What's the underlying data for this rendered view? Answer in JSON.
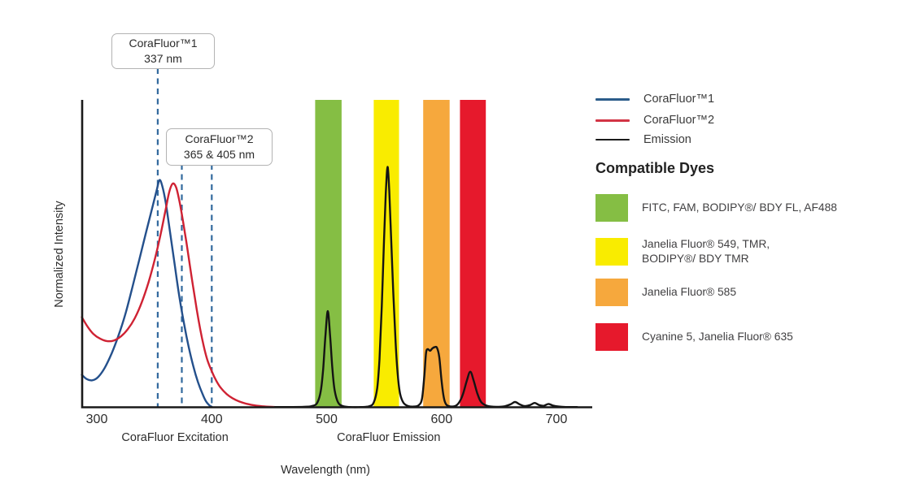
{
  "annotations": [
    {
      "title": "CoraFluor™1",
      "value": "337 nm"
    },
    {
      "title": "CoraFluor™2",
      "value": "365 & 405 nm"
    }
  ],
  "legend": {
    "items": [
      {
        "label": "CoraFluor™1",
        "color": "#2B5C8A"
      },
      {
        "label": "CoraFluor™2",
        "color": "#D23445"
      },
      {
        "label": "Emission",
        "color": "#1A1A1A"
      }
    ]
  },
  "compatible_dyes": {
    "heading": "Compatible Dyes",
    "items": [
      {
        "color": "#85BE44",
        "lines": [
          "FITC, FAM, BODIPY®/ BDY FL, AF488"
        ]
      },
      {
        "color": "#F9EC00",
        "lines": [
          "Janelia Fluor® 549, TMR,",
          "BODIPY®/ BDY TMR"
        ]
      },
      {
        "color": "#F6A83D",
        "lines": [
          "Janelia Fluor® 585"
        ]
      },
      {
        "color": "#E6192C",
        "lines": [
          "Cyanine 5, Janelia Fluor® 635"
        ]
      }
    ]
  },
  "chart_data": {
    "type": "line",
    "title": "",
    "xlabel": "Wavelength (nm)",
    "ylabel": "Normalized Intensity",
    "x_ticks": [
      300,
      400,
      500,
      600,
      700
    ],
    "x_range_nm": [
      287,
      727
    ],
    "ylim": [
      0,
      1
    ],
    "grid": false,
    "section_labels": [
      {
        "label": "CoraFluor Excitation",
        "center_nm": 368
      },
      {
        "label": "CoraFluor Emission",
        "center_nm": 554
      }
    ],
    "dashed_lines": [
      {
        "label_nm": 337,
        "draw_nm": 353
      },
      {
        "label_nm": 365,
        "draw_nm": 374
      },
      {
        "label_nm": 405,
        "draw_nm": 400
      }
    ],
    "filter_bands": [
      {
        "name": "green-filter",
        "nm": [
          490,
          513
        ],
        "color": "#85BE44"
      },
      {
        "name": "yellow-filter",
        "nm": [
          541,
          563
        ],
        "color": "#F9EC00"
      },
      {
        "name": "orange-filter",
        "nm": [
          584,
          607
        ],
        "color": "#F6A83D"
      },
      {
        "name": "red-filter",
        "nm": [
          616,
          638.5
        ],
        "color": "#E6192C"
      }
    ],
    "series": [
      {
        "name": "CoraFluor™1 excitation",
        "color": "#24508C",
        "points": [
          [
            287,
            0.135
          ],
          [
            291,
            0.118
          ],
          [
            296,
            0.112
          ],
          [
            301,
            0.125
          ],
          [
            307,
            0.165
          ],
          [
            313,
            0.225
          ],
          [
            319,
            0.3
          ],
          [
            325,
            0.39
          ],
          [
            331,
            0.5
          ],
          [
            337,
            0.615
          ],
          [
            343,
            0.73
          ],
          [
            348,
            0.825
          ],
          [
            352,
            0.9
          ],
          [
            354.5,
            0.945
          ],
          [
            357,
            0.92
          ],
          [
            360,
            0.85
          ],
          [
            364,
            0.72
          ],
          [
            368,
            0.585
          ],
          [
            372,
            0.455
          ],
          [
            376,
            0.345
          ],
          [
            380,
            0.25
          ],
          [
            384,
            0.17
          ],
          [
            388,
            0.105
          ],
          [
            392,
            0.055
          ],
          [
            395,
            0.025
          ],
          [
            398,
            0.008
          ],
          [
            400,
            0.002
          ]
        ]
      },
      {
        "name": "CoraFluor™2 excitation",
        "color": "#CF2233",
        "points": [
          [
            287,
            0.375
          ],
          [
            292,
            0.335
          ],
          [
            297,
            0.305
          ],
          [
            303,
            0.285
          ],
          [
            309,
            0.275
          ],
          [
            315,
            0.278
          ],
          [
            321,
            0.295
          ],
          [
            327,
            0.325
          ],
          [
            333,
            0.37
          ],
          [
            339,
            0.435
          ],
          [
            345,
            0.52
          ],
          [
            351,
            0.625
          ],
          [
            356,
            0.73
          ],
          [
            360,
            0.825
          ],
          [
            363,
            0.895
          ],
          [
            366,
            0.93
          ],
          [
            369,
            0.915
          ],
          [
            372,
            0.855
          ],
          [
            375,
            0.775
          ],
          [
            378,
            0.685
          ],
          [
            381,
            0.59
          ],
          [
            384,
            0.495
          ],
          [
            387,
            0.405
          ],
          [
            390,
            0.325
          ],
          [
            393,
            0.255
          ],
          [
            396,
            0.2
          ],
          [
            400,
            0.15
          ],
          [
            404,
            0.11
          ],
          [
            408,
            0.08
          ],
          [
            413,
            0.055
          ],
          [
            418,
            0.038
          ],
          [
            424,
            0.024
          ],
          [
            430,
            0.015
          ],
          [
            437,
            0.008
          ],
          [
            444,
            0.004
          ],
          [
            452,
            0.002
          ],
          [
            458,
            0.001
          ]
        ]
      },
      {
        "name": "Emission",
        "color": "#141414",
        "points": [
          [
            455,
            0.001
          ],
          [
            480,
            0.002
          ],
          [
            488,
            0.006
          ],
          [
            492,
            0.02
          ],
          [
            495,
            0.07
          ],
          [
            497,
            0.16
          ],
          [
            499,
            0.3
          ],
          [
            501,
            0.4
          ],
          [
            503,
            0.3
          ],
          [
            505,
            0.16
          ],
          [
            507,
            0.07
          ],
          [
            510,
            0.02
          ],
          [
            514,
            0.005
          ],
          [
            520,
            0.001
          ],
          [
            530,
            0.001
          ],
          [
            537,
            0.004
          ],
          [
            541,
            0.02
          ],
          [
            544,
            0.08
          ],
          [
            546,
            0.2
          ],
          [
            548,
            0.42
          ],
          [
            550,
            0.7
          ],
          [
            551.5,
            0.89
          ],
          [
            553,
            1.0
          ],
          [
            554.5,
            0.9
          ],
          [
            556,
            0.72
          ],
          [
            558,
            0.48
          ],
          [
            560,
            0.27
          ],
          [
            562,
            0.13
          ],
          [
            564,
            0.055
          ],
          [
            567,
            0.018
          ],
          [
            571,
            0.005
          ],
          [
            576,
            0.003
          ],
          [
            580,
            0.008
          ],
          [
            583,
            0.035
          ],
          [
            585,
            0.13
          ],
          [
            586.5,
            0.225
          ],
          [
            588,
            0.242
          ],
          [
            590,
            0.235
          ],
          [
            592,
            0.245
          ],
          [
            594,
            0.25
          ],
          [
            596,
            0.248
          ],
          [
            598,
            0.21
          ],
          [
            600,
            0.11
          ],
          [
            602,
            0.04
          ],
          [
            604,
            0.012
          ],
          [
            607,
            0.004
          ],
          [
            611,
            0.004
          ],
          [
            614,
            0.012
          ],
          [
            617,
            0.035
          ],
          [
            619,
            0.06
          ],
          [
            622,
            0.11
          ],
          [
            625,
            0.148
          ],
          [
            628,
            0.11
          ],
          [
            631,
            0.06
          ],
          [
            634,
            0.025
          ],
          [
            638,
            0.009
          ],
          [
            643,
            0.003
          ],
          [
            650,
            0.002
          ],
          [
            655,
            0.004
          ],
          [
            660,
            0.012
          ],
          [
            664,
            0.022
          ],
          [
            668,
            0.012
          ],
          [
            672,
            0.005
          ],
          [
            677,
            0.009
          ],
          [
            681,
            0.018
          ],
          [
            685,
            0.009
          ],
          [
            689,
            0.006
          ],
          [
            693,
            0.014
          ],
          [
            697,
            0.007
          ],
          [
            702,
            0.003
          ],
          [
            708,
            0.001
          ],
          [
            718,
            0.001
          ]
        ]
      }
    ]
  }
}
